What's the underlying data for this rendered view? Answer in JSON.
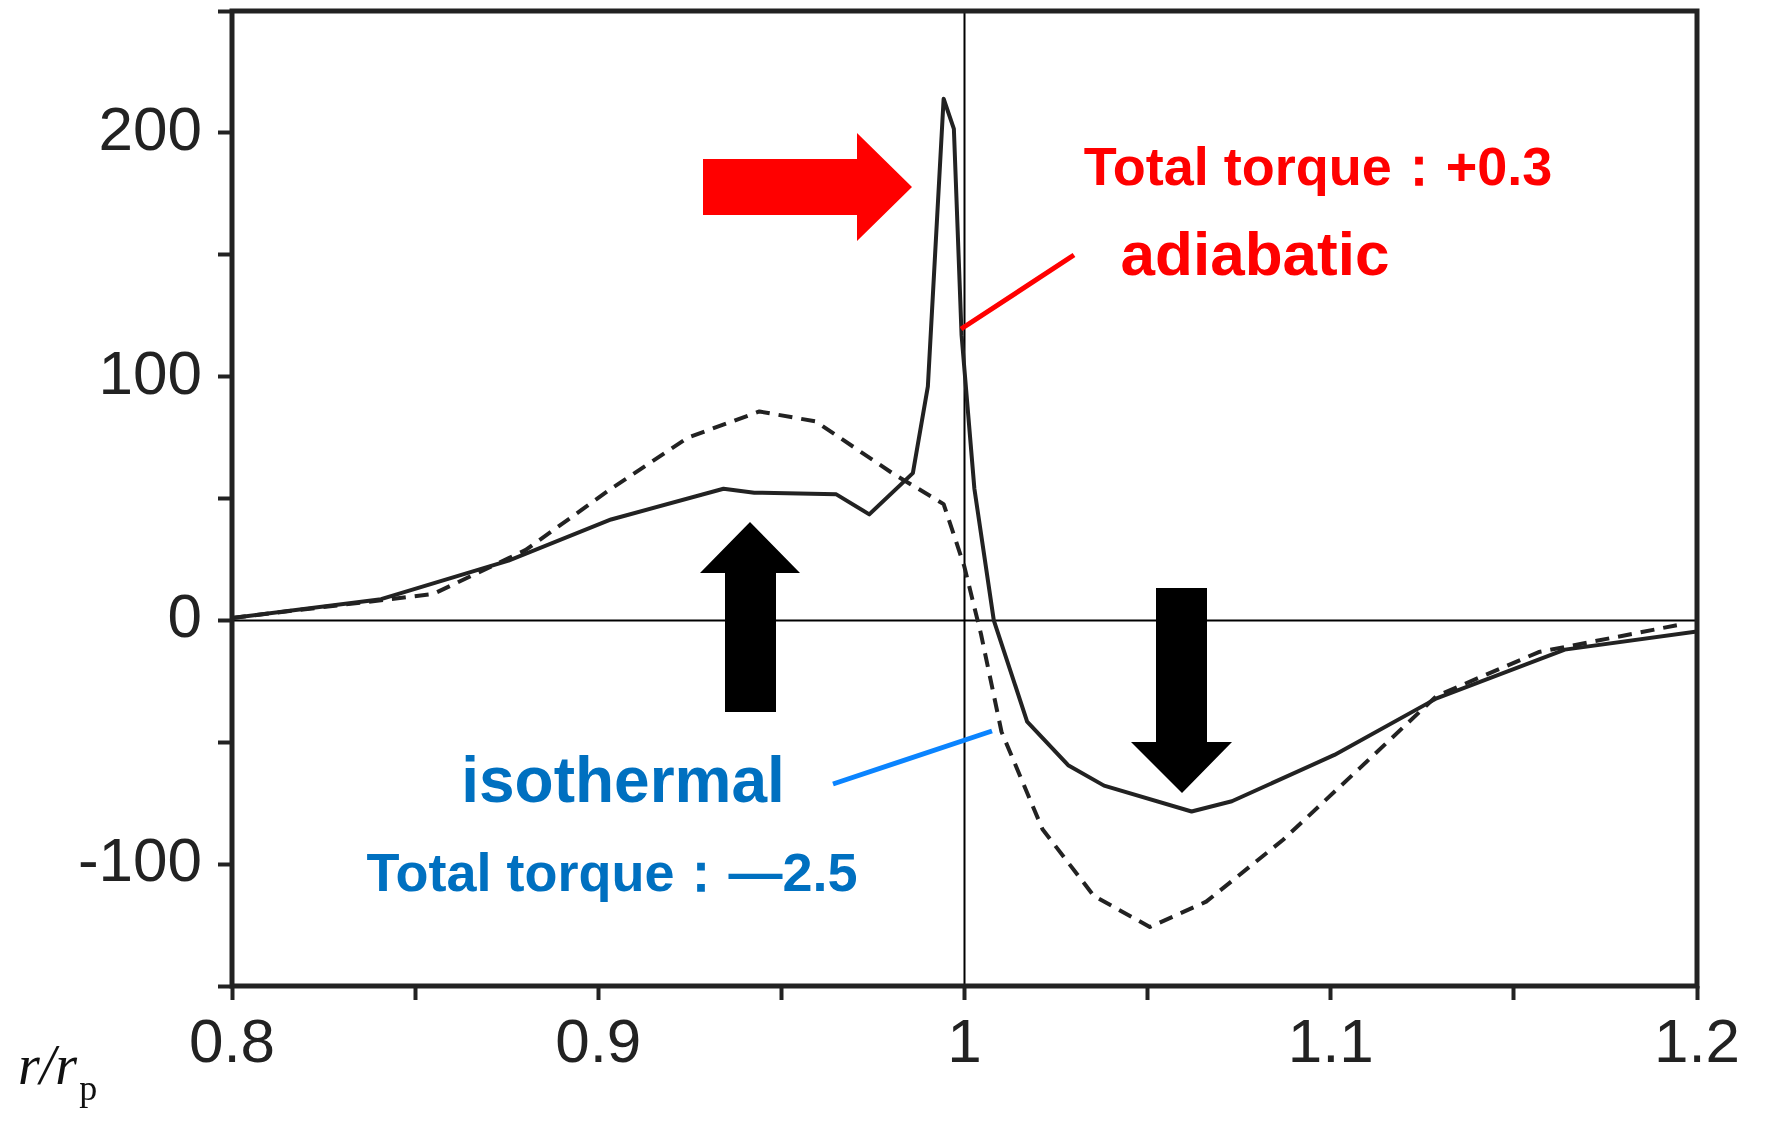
{
  "chart_data": {
    "type": "line",
    "xlabel": "r/r$_{p}$",
    "xlim": [
      0.8,
      1.2
    ],
    "xticks": [
      0.8,
      {
        "value": 0.85,
        "label": null
      },
      0.9,
      {
        "value": 0.95,
        "label": null
      },
      1,
      {
        "value": 1.05,
        "label": null
      },
      1.1,
      {
        "value": 1.15,
        "label": null
      },
      1.2
    ],
    "ylim": [
      -150,
      250
    ],
    "yticks": [
      {
        "value": -150,
        "label": null
      },
      -100,
      {
        "value": -50,
        "label": null
      },
      0,
      {
        "value": 50,
        "label": null
      },
      100,
      {
        "value": 150,
        "label": null
      },
      200,
      {
        "value": 250,
        "label": null
      }
    ],
    "grid": false,
    "legend": false,
    "marker": "none",
    "series": [
      {
        "name": "adiabatic",
        "color": "#222222",
        "line_style": "solid",
        "x": [
          0.8,
          0.8407,
          0.8755,
          0.9035,
          0.9342,
          0.9426,
          0.965,
          0.974,
          0.9859,
          0.99,
          0.9943,
          0.9971,
          0.9992,
          1.0027,
          1.008,
          1.0171,
          1.0283,
          1.0381,
          1.062,
          1.073,
          1.101,
          1.1289,
          1.1639,
          1.2
        ],
        "values": [
          1,
          8.7,
          24.5,
          41.4,
          54,
          52.4,
          51.7,
          43.5,
          60.4,
          96,
          214,
          201.6,
          117,
          54,
          0,
          -41.5,
          -59.4,
          -67.8,
          -78.4,
          -74.2,
          -55.2,
          -32,
          -12,
          -4.6
        ]
      },
      {
        "name": "isothermal",
        "color": "#222222",
        "line_style": "dashed",
        "x": [
          0.8,
          0.8549,
          0.8801,
          0.9035,
          0.9245,
          0.944,
          0.9594,
          0.9803,
          0.9943,
          0.9999,
          1.0045,
          1.0101,
          1.0213,
          1.0353,
          1.0506,
          1.066,
          1.087,
          1.108,
          1.1289,
          1.1568,
          1.1945
        ],
        "values": [
          1,
          10.8,
          28.8,
          54,
          75,
          85.7,
          81.6,
          60.4,
          47.7,
          22.4,
          -5.6,
          -45.7,
          -85.7,
          -113,
          -125.8,
          -115.4,
          -90,
          -60.5,
          -31,
          -13,
          -2
        ]
      }
    ],
    "ref_lines": [
      {
        "axis": "x",
        "value": 1,
        "color": "#000000"
      },
      {
        "axis": "y",
        "value": 0,
        "color": "#000000"
      }
    ],
    "annotations": [
      "Total torque：+0.3",
      "Total torque：—2.5"
    ]
  }
}
